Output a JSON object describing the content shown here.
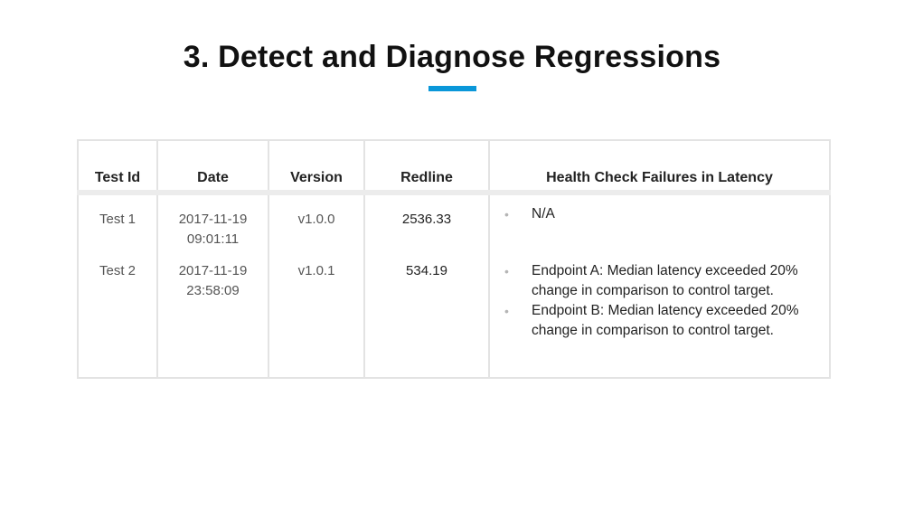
{
  "slide": {
    "title": "3. Detect and Diagnose Regressions",
    "accent_color": "#0a97d9"
  },
  "table": {
    "headers": {
      "test_id": "Test Id",
      "date": "Date",
      "version": "Version",
      "redline": "Redline",
      "failures": "Health Check Failures in Latency"
    },
    "rows": [
      {
        "test_id": "Test 1",
        "date_line1": "2017-11-19",
        "date_line2": "09:01:11",
        "version": "v1.0.0",
        "redline": "2536.33",
        "failures": [
          "N/A"
        ]
      },
      {
        "test_id": "Test 2",
        "date_line1": "2017-11-19",
        "date_line2": "23:58:09",
        "version": "v1.0.1",
        "redline": "534.19",
        "failures": [
          "Endpoint A: Median latency exceeded 20% change in comparison to control target.",
          "Endpoint B: Median latency exceeded 20% change in comparison to control target."
        ]
      }
    ]
  }
}
